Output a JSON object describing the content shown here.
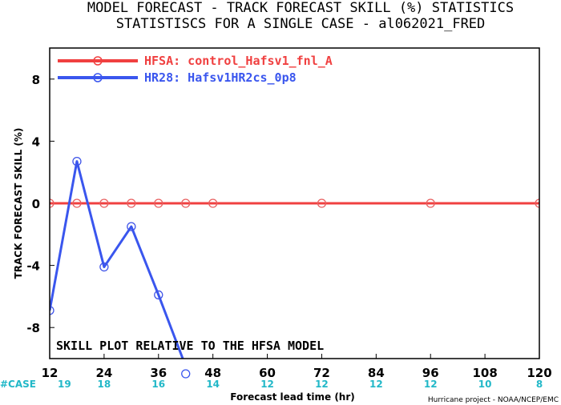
{
  "chart_data": {
    "type": "line",
    "title": "MODEL FORECAST - TRACK FORECAST SKILL (%) STATISTICS",
    "subtitle": "STATISTISCS FOR A SINGLE CASE - al062021_FRED",
    "xlabel": "Forecast lead time (hr)",
    "ylabel": "TRACK FORECAST SKILL (%)",
    "xlim": [
      12,
      120
    ],
    "ylim": [
      -10,
      10
    ],
    "x_ticks": [
      12,
      24,
      36,
      48,
      60,
      72,
      84,
      96,
      108,
      120
    ],
    "y_ticks": [
      8,
      4,
      0,
      -4,
      -8
    ],
    "grid": false,
    "legend_position": "top-left",
    "annotation": "SKILL PLOT RELATIVE TO THE HFSA MODEL",
    "case_label": "#CASE",
    "case_counts": [
      {
        "x": 12,
        "n": "19"
      },
      {
        "x": 24,
        "n": "18"
      },
      {
        "x": 36,
        "n": "16"
      },
      {
        "x": 48,
        "n": "14"
      },
      {
        "x": 60,
        "n": "12"
      },
      {
        "x": 72,
        "n": "12"
      },
      {
        "x": 84,
        "n": "12"
      },
      {
        "x": 96,
        "n": "12"
      },
      {
        "x": 108,
        "n": "10"
      },
      {
        "x": 120,
        "n": "8"
      }
    ],
    "series": [
      {
        "name": "HFSA: control_Hafsv1_fnl_A",
        "color": "#f04040",
        "x": [
          12,
          18,
          24,
          30,
          36,
          42,
          48,
          72,
          96,
          120
        ],
        "y": [
          0,
          0,
          0,
          0,
          0,
          0,
          0,
          0,
          0,
          0
        ]
      },
      {
        "name": "HR28: Hafsv1HR2cs_0p8",
        "color": "#3a56ee",
        "x": [
          12,
          18,
          24,
          30,
          36,
          42
        ],
        "y": [
          -6.9,
          2.7,
          -4.1,
          -1.5,
          -5.9,
          -10.5
        ]
      }
    ]
  },
  "footer_credit": "Hurricane project - NOAA/NCEP/EMC"
}
